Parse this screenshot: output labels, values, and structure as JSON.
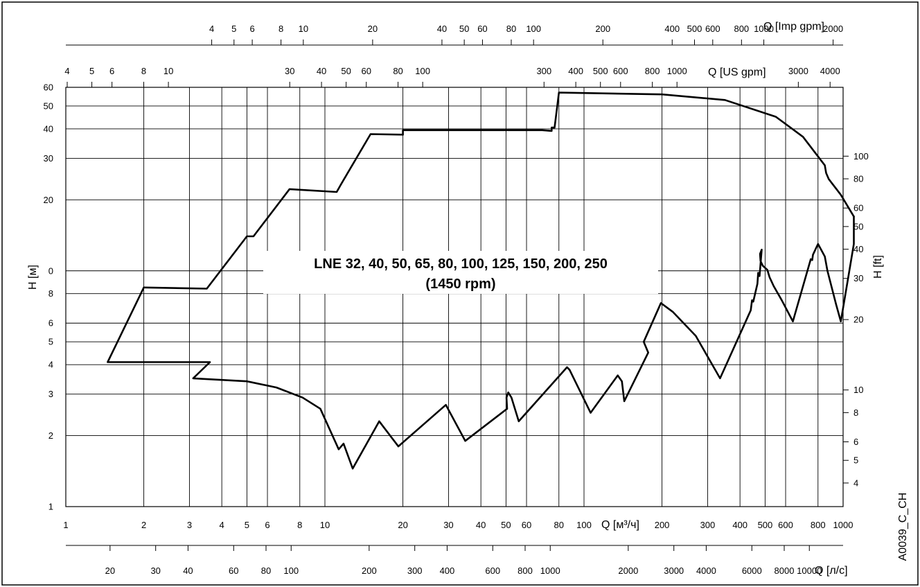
{
  "chart_data": {
    "type": "line",
    "title": "LNE 32, 40, 50, 65, 80, 100, 125, 150, 200, 250",
    "subtitle": "(1450 rpm)",
    "xlabel": "Q [м³/ч]",
    "ylabel": "H [м]",
    "x_scale": "log",
    "y_scale": "log",
    "xlim": [
      1,
      1000
    ],
    "ylim": [
      1,
      60
    ],
    "grid": true,
    "y_ticks": [
      {
        "v": 1,
        "t": "1"
      },
      {
        "v": 2,
        "t": "2"
      },
      {
        "v": 3,
        "t": "3"
      },
      {
        "v": 4,
        "t": "4"
      },
      {
        "v": 5,
        "t": "5"
      },
      {
        "v": 6,
        "t": "6"
      },
      {
        "v": 8,
        "t": "8"
      },
      {
        "v": 10,
        "t": "0"
      },
      {
        "v": 20,
        "t": "20"
      },
      {
        "v": 30,
        "t": "30"
      },
      {
        "v": 40,
        "t": "40"
      },
      {
        "v": 50,
        "t": "50"
      },
      {
        "v": 60,
        "t": "60"
      }
    ],
    "x_ticks": [
      {
        "v": 1,
        "t": "1"
      },
      {
        "v": 2,
        "t": "2"
      },
      {
        "v": 3,
        "t": "3"
      },
      {
        "v": 4,
        "t": "4"
      },
      {
        "v": 5,
        "t": "5"
      },
      {
        "v": 6,
        "t": "6"
      },
      {
        "v": 8,
        "t": "8"
      },
      {
        "v": 10,
        "t": "10"
      },
      {
        "v": 20,
        "t": "20"
      },
      {
        "v": 30,
        "t": "30"
      },
      {
        "v": 40,
        "t": "40"
      },
      {
        "v": 50,
        "t": "50"
      },
      {
        "v": 60,
        "t": "60"
      },
      {
        "v": 80,
        "t": "80"
      },
      {
        "v": 100,
        "t": "100"
      },
      {
        "v": 200,
        "t": "200"
      },
      {
        "v": 300,
        "t": "300"
      },
      {
        "v": 400,
        "t": "400"
      },
      {
        "v": 500,
        "t": "500"
      },
      {
        "v": 600,
        "t": "600"
      },
      {
        "v": 800,
        "t": "800"
      },
      {
        "v": 1000,
        "t": "1000"
      }
    ],
    "right_axis": {
      "label": "H [ft]",
      "ticks": [
        {
          "v": 4,
          "t": "4"
        },
        {
          "v": 5,
          "t": "5"
        },
        {
          "v": 6,
          "t": "6"
        },
        {
          "v": 8,
          "t": "8"
        },
        {
          "v": 10,
          "t": "10"
        },
        {
          "v": 20,
          "t": "20"
        },
        {
          "v": 30,
          "t": "30"
        },
        {
          "v": 40,
          "t": "40"
        },
        {
          "v": 50,
          "t": "50"
        },
        {
          "v": 60,
          "t": "60"
        },
        {
          "v": 80,
          "t": "80"
        },
        {
          "v": 100,
          "t": "100"
        }
      ]
    },
    "top_axes": [
      {
        "label": "Q [Imp gpm]",
        "ticks": [
          {
            "v": 4,
            "t": "4"
          },
          {
            "v": 5,
            "t": "5"
          },
          {
            "v": 6,
            "t": "6"
          },
          {
            "v": 8,
            "t": "8"
          },
          {
            "v": 10,
            "t": "10"
          },
          {
            "v": 20,
            "t": "20"
          },
          {
            "v": 40,
            "t": "40"
          },
          {
            "v": 50,
            "t": "50"
          },
          {
            "v": 60,
            "t": "60"
          },
          {
            "v": 80,
            "t": "80"
          },
          {
            "v": 100,
            "t": "100"
          },
          {
            "v": 200,
            "t": "200"
          },
          {
            "v": 400,
            "t": "400"
          },
          {
            "v": 500,
            "t": "500"
          },
          {
            "v": 600,
            "t": "600"
          },
          {
            "v": 800,
            "t": "800"
          },
          {
            "v": 1000,
            "t": "1000"
          },
          {
            "v": 2000,
            "t": "2000"
          }
        ]
      },
      {
        "label": "Q [US gpm]",
        "ticks": [
          {
            "v": 4,
            "t": "4"
          },
          {
            "v": 5,
            "t": "5"
          },
          {
            "v": 6,
            "t": "6"
          },
          {
            "v": 8,
            "t": "8"
          },
          {
            "v": 10,
            "t": "10"
          },
          {
            "v": 30,
            "t": "30"
          },
          {
            "v": 40,
            "t": "40"
          },
          {
            "v": 50,
            "t": "50"
          },
          {
            "v": 60,
            "t": "60"
          },
          {
            "v": 80,
            "t": "80"
          },
          {
            "v": 100,
            "t": "100"
          },
          {
            "v": 300,
            "t": "300"
          },
          {
            "v": 400,
            "t": "400"
          },
          {
            "v": 500,
            "t": "500"
          },
          {
            "v": 600,
            "t": "600"
          },
          {
            "v": 800,
            "t": "800"
          },
          {
            "v": 1000,
            "t": "1000"
          },
          {
            "v": 3000,
            "t": "3000"
          },
          {
            "v": 4000,
            "t": "4000"
          }
        ]
      }
    ],
    "bottom_axis2": {
      "label": "Q [л/с]",
      "ticks": [
        {
          "v": 20,
          "t": "20"
        },
        {
          "v": 30,
          "t": "30"
        },
        {
          "v": 40,
          "t": "40"
        },
        {
          "v": 60,
          "t": "60"
        },
        {
          "v": 80,
          "t": "80"
        },
        {
          "v": 100,
          "t": "100"
        },
        {
          "v": 200,
          "t": "200"
        },
        {
          "v": 300,
          "t": "300"
        },
        {
          "v": 400,
          "t": "400"
        },
        {
          "v": 600,
          "t": "600"
        },
        {
          "v": 800,
          "t": "800"
        },
        {
          "v": 1000,
          "t": "1000"
        },
        {
          "v": 2000,
          "t": "2000"
        },
        {
          "v": 3000,
          "t": "3000"
        },
        {
          "v": 4000,
          "t": "4000"
        },
        {
          "v": 6000,
          "t": "6000"
        },
        {
          "v": 8000,
          "t": "8000"
        },
        {
          "v": 10000,
          "t": "10000"
        }
      ]
    },
    "series": [
      {
        "points": [
          [
            2,
            8.5
          ],
          [
            3.5,
            8.4
          ],
          [
            5,
            14
          ],
          [
            5.3,
            14
          ],
          [
            7.3,
            22.2
          ],
          [
            11.1,
            21.6
          ],
          [
            11.6,
            23.5
          ],
          [
            15,
            38
          ],
          [
            20,
            37.8
          ],
          [
            20,
            39.5
          ],
          [
            69,
            39.5
          ],
          [
            75,
            39.2
          ],
          [
            75,
            40.5
          ],
          [
            77,
            40.5
          ],
          [
            80,
            57
          ],
          [
            200,
            56
          ],
          [
            350,
            53
          ],
          [
            550,
            45
          ],
          [
            700,
            37
          ],
          [
            850,
            28
          ],
          [
            860,
            26
          ],
          [
            880,
            24.5
          ],
          [
            980,
            21
          ],
          [
            1100,
            17
          ]
        ]
      },
      {
        "points": [
          [
            2,
            8.5
          ],
          [
            1.45,
            4.1
          ],
          [
            3.5,
            4.1
          ],
          [
            3.6,
            4.1
          ],
          [
            3.1,
            3.5
          ],
          [
            5,
            3.4
          ],
          [
            6.5,
            3.2
          ],
          [
            8.2,
            2.9
          ],
          [
            9.6,
            2.6
          ],
          [
            11.3,
            1.75
          ],
          [
            11.8,
            1.85
          ],
          [
            12.8,
            1.45
          ],
          [
            16.2,
            2.3
          ],
          [
            19.2,
            1.8
          ],
          [
            29.3,
            2.7
          ],
          [
            34.8,
            1.9
          ],
          [
            50.5,
            2.6
          ],
          [
            50.2,
            2.9
          ],
          [
            51,
            3.05
          ],
          [
            52.5,
            2.9
          ],
          [
            56,
            2.3
          ],
          [
            86,
            3.9
          ],
          [
            88,
            3.8
          ],
          [
            106,
            2.5
          ],
          [
            135,
            3.6
          ],
          [
            140,
            3.4
          ],
          [
            143,
            2.8
          ],
          [
            177,
            4.5
          ],
          [
            170,
            5
          ],
          [
            198,
            7.3
          ],
          [
            220,
            6.7
          ],
          [
            270,
            5.3
          ],
          [
            335,
            3.5
          ],
          [
            440,
            6.8
          ],
          [
            445,
            7.5
          ],
          [
            450,
            7.4
          ],
          [
            467,
            8.8
          ],
          [
            470,
            9.8
          ],
          [
            476,
            9.5
          ],
          [
            485,
            12.3
          ],
          [
            478,
            11.8
          ],
          [
            480,
            11
          ],
          [
            490,
            10.5
          ],
          [
            510,
            10.1
          ],
          [
            520,
            9.4
          ],
          [
            540,
            8.6
          ],
          [
            580,
            7.5
          ],
          [
            640,
            6.1
          ],
          [
            700,
            8.6
          ],
          [
            750,
            11.2
          ],
          [
            760,
            11.1
          ],
          [
            765,
            11.7
          ],
          [
            800,
            13
          ],
          [
            850,
            11.5
          ],
          [
            870,
            10
          ],
          [
            940,
            7.2
          ],
          [
            980,
            6.1
          ],
          [
            1040,
            9
          ],
          [
            1100,
            13
          ],
          [
            1100,
            17
          ]
        ]
      }
    ]
  },
  "watermark_code": "A0039_C_CH"
}
